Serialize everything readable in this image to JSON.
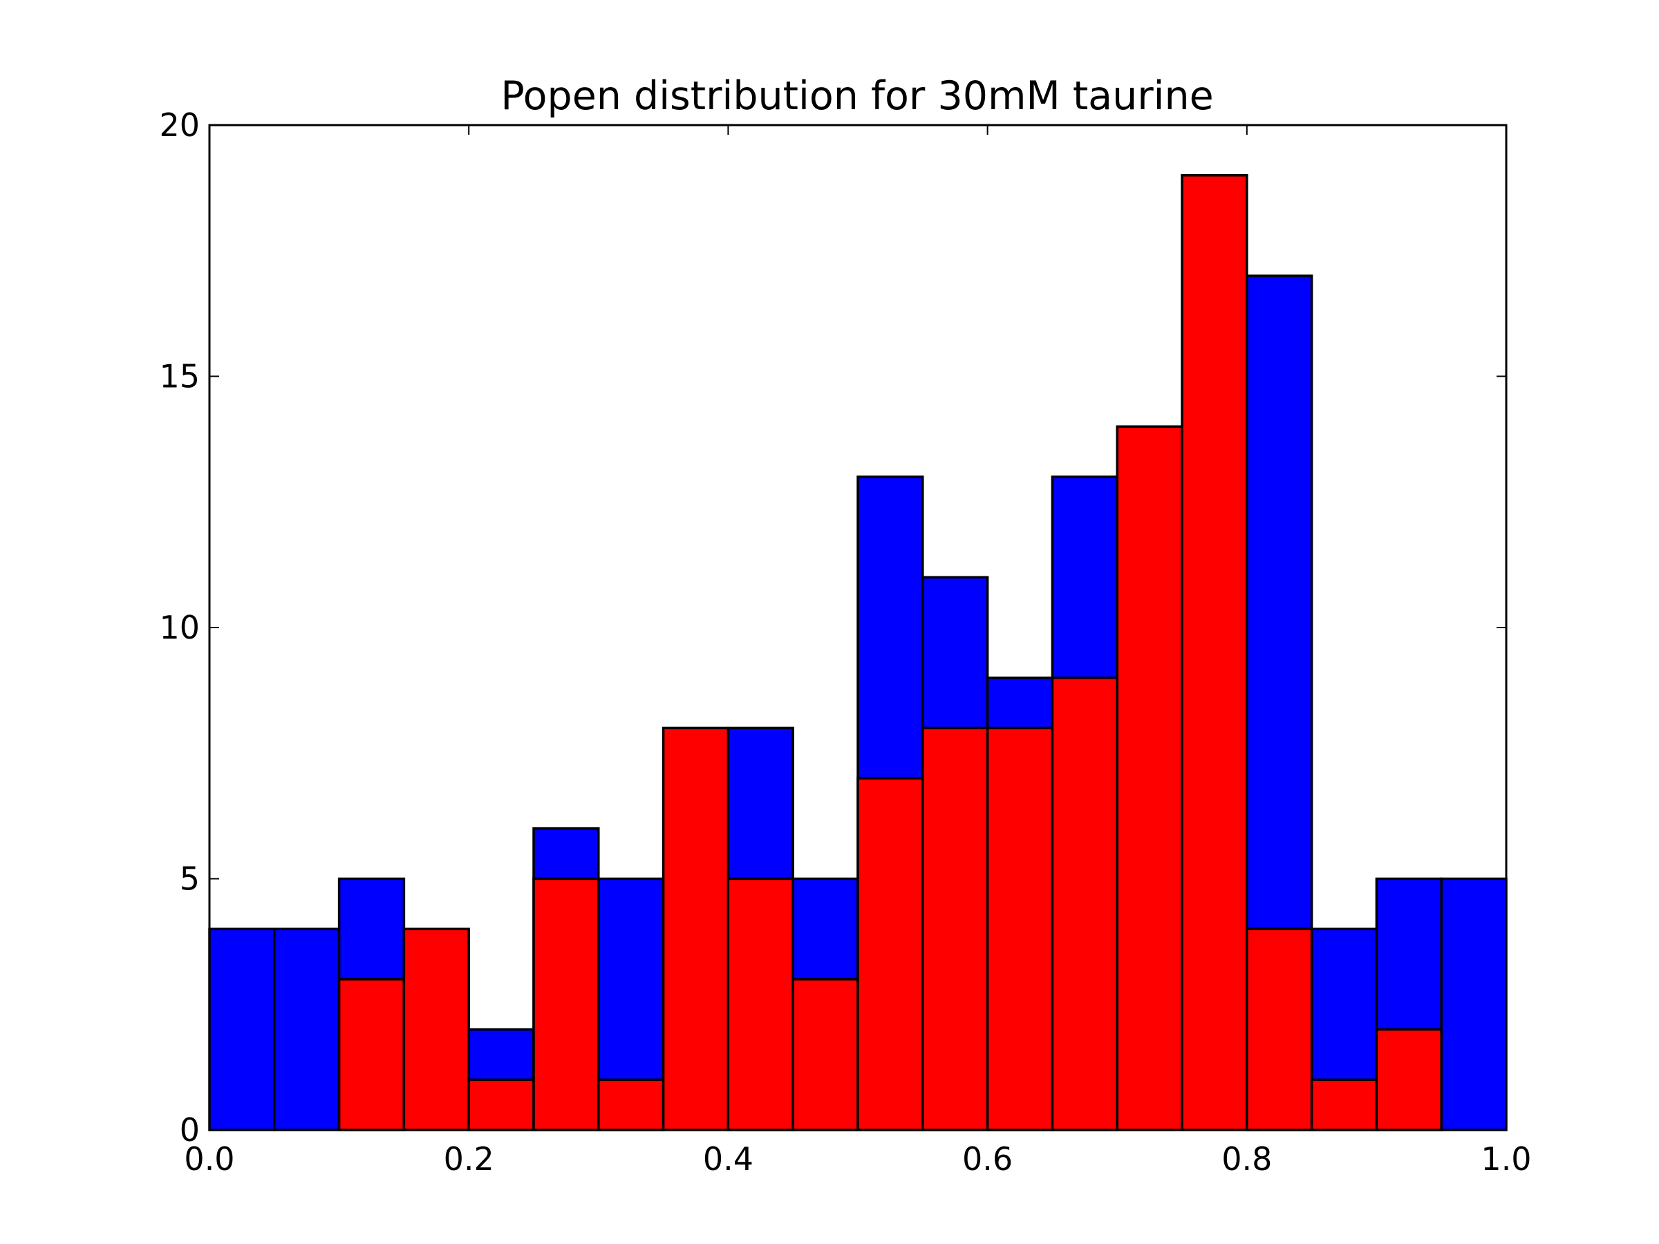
{
  "chart_data": {
    "type": "bar",
    "title": "Popen distribution for 30mM taurine",
    "xlabel": "",
    "ylabel": "",
    "xlim": [
      0.0,
      1.0
    ],
    "ylim": [
      0,
      20
    ],
    "x_ticks": [
      "0.0",
      "0.2",
      "0.4",
      "0.6",
      "0.8",
      "1.0"
    ],
    "y_ticks": [
      "0",
      "5",
      "10",
      "15",
      "20"
    ],
    "grid": false,
    "bin_edges": [
      0.0,
      0.05,
      0.1,
      0.15,
      0.2,
      0.25,
      0.3,
      0.35,
      0.4,
      0.45,
      0.5,
      0.55,
      0.6,
      0.65,
      0.7,
      0.75,
      0.8,
      0.85,
      0.9,
      0.95,
      1.0
    ],
    "series": [
      {
        "color": "#0000ff",
        "values": [
          4,
          4,
          5,
          0,
          2,
          6,
          5,
          0,
          8,
          5,
          13,
          11,
          9,
          13,
          0,
          0,
          17,
          4,
          5,
          5
        ]
      },
      {
        "color": "#ff0000",
        "values": [
          0,
          0,
          3,
          4,
          1,
          5,
          1,
          8,
          5,
          3,
          7,
          8,
          8,
          9,
          14,
          19,
          4,
          1,
          2,
          0
        ]
      }
    ]
  }
}
